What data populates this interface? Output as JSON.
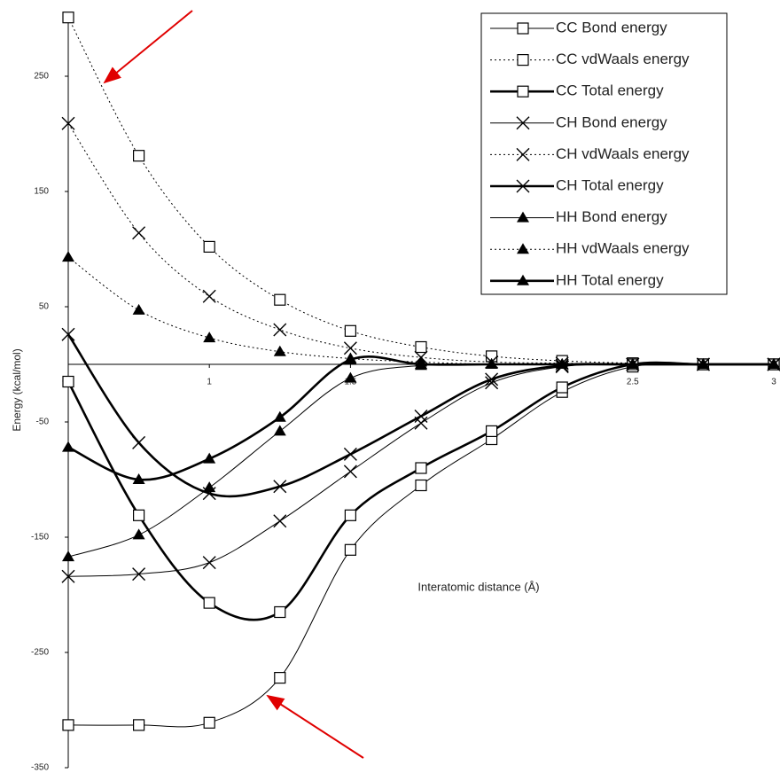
{
  "chart_data": {
    "type": "line",
    "x_label": "Interatomic distance (Å)",
    "y_label": "Energy (kcal/mol)",
    "x": [
      0.5,
      0.75,
      1,
      1.25,
      1.5,
      1.75,
      2,
      2.25,
      2.5,
      2.75,
      3
    ],
    "xlim": [
      0.5,
      3
    ],
    "xticks": [
      0.5,
      1,
      1.5,
      2,
      2.5,
      3
    ],
    "ylim": [
      -350,
      305
    ],
    "yticks": [
      250,
      150,
      50,
      -50,
      -150,
      -250,
      -350
    ],
    "legend": "top-right",
    "series": [
      {
        "name": "CC Bond energy",
        "color": "#000000",
        "marker": "square",
        "line": "solid",
        "weight": "thin",
        "values": [
          -313,
          -313,
          -311,
          -272,
          -161,
          -105,
          -65,
          -24,
          -2,
          0,
          0
        ]
      },
      {
        "name": "CC vdWaals energy",
        "color": "#000000",
        "marker": "square",
        "line": "dotted",
        "weight": "thin",
        "values": [
          301,
          181,
          102,
          56,
          29,
          15,
          7,
          3,
          1,
          0,
          0
        ]
      },
      {
        "name": "CC Total energy",
        "color": "#000000",
        "marker": "square",
        "line": "solid",
        "weight": "thick",
        "values": [
          -15,
          -131,
          -207,
          -215,
          -131,
          -90,
          -58,
          -20,
          0,
          0,
          0
        ]
      },
      {
        "name": "CH Bond energy",
        "color": "#000000",
        "marker": "cross",
        "line": "solid",
        "weight": "thin",
        "values": [
          -184,
          -182,
          -172,
          -136,
          -93,
          -51,
          -16,
          -2,
          0,
          0,
          0
        ]
      },
      {
        "name": "CH vdWaals energy",
        "color": "#000000",
        "marker": "cross",
        "line": "dotted",
        "weight": "thin",
        "values": [
          209,
          114,
          59,
          30,
          14,
          6,
          2,
          1,
          0,
          0,
          0
        ]
      },
      {
        "name": "CH Total energy",
        "color": "#000000",
        "marker": "cross",
        "line": "solid",
        "weight": "thick",
        "values": [
          26,
          -68,
          -112,
          -106,
          -78,
          -45,
          -13,
          -1,
          0,
          0,
          0
        ]
      },
      {
        "name": "HH Bond energy",
        "color": "#000000",
        "marker": "triangle",
        "line": "solid",
        "weight": "thin",
        "values": [
          -167,
          -148,
          -107,
          -58,
          -12,
          -1,
          0,
          0,
          0,
          0,
          0
        ]
      },
      {
        "name": "HH vdWaals energy",
        "color": "#000000",
        "marker": "triangle",
        "line": "dotted",
        "weight": "thin",
        "values": [
          93,
          47,
          23,
          11,
          5,
          2,
          0,
          0,
          0,
          0,
          0
        ]
      },
      {
        "name": "HH Total energy",
        "color": "#000000",
        "marker": "triangle",
        "line": "solid",
        "weight": "thick",
        "values": [
          -72,
          -100,
          -82,
          -46,
          4,
          0,
          0,
          0,
          0,
          0,
          0
        ]
      }
    ]
  }
}
